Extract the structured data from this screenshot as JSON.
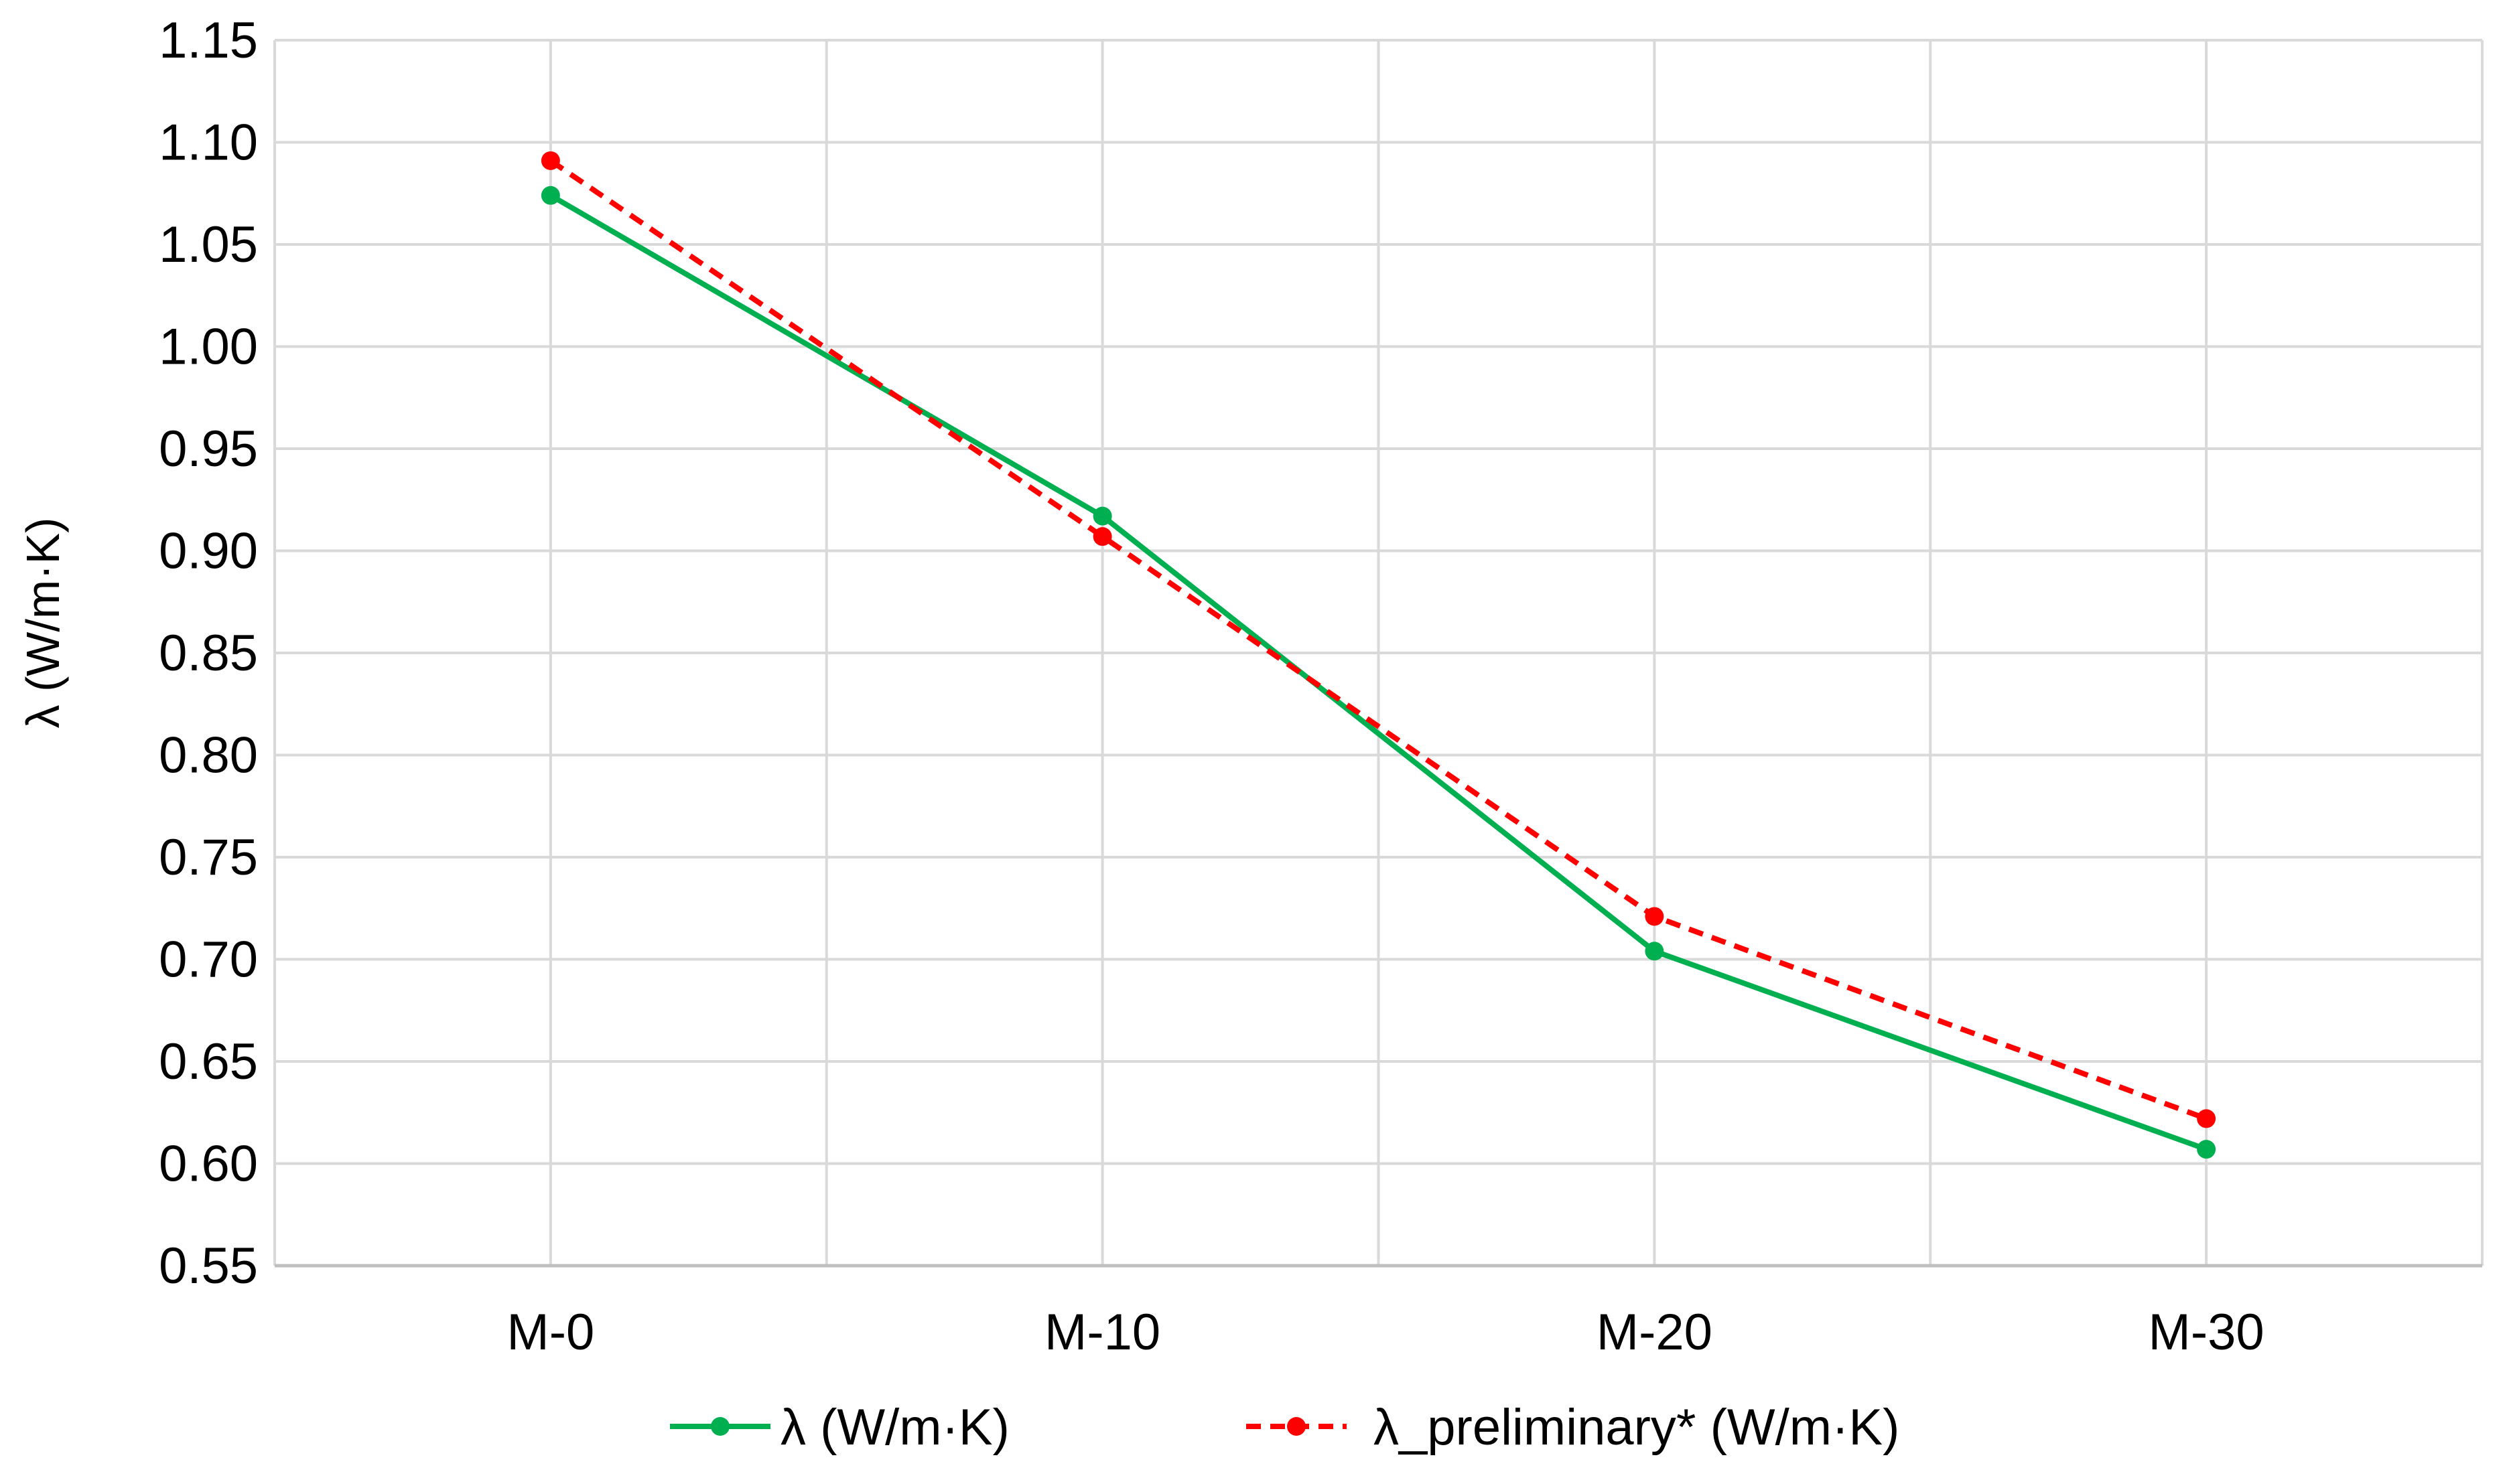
{
  "chart_data": {
    "type": "line",
    "categories": [
      "M-0",
      "M-10",
      "M-20",
      "M-30"
    ],
    "series": [
      {
        "name": "λ (W/m·K)",
        "values": [
          1.074,
          0.917,
          0.704,
          0.607
        ],
        "color": "#00b050",
        "dash": "solid",
        "marker": "circle"
      },
      {
        "name": "λ_preliminary*  (W/m·K)",
        "values": [
          1.091,
          0.907,
          0.721,
          0.622
        ],
        "color": "#ff0000",
        "dash": "dashed",
        "marker": "circle"
      }
    ],
    "title": "",
    "xlabel": "",
    "ylabel": "λ (W/m·K)",
    "ylim": [
      0.55,
      1.15
    ],
    "yticks": [
      "0.55",
      "0.60",
      "0.65",
      "0.70",
      "0.75",
      "0.80",
      "0.85",
      "0.90",
      "0.95",
      "1.00",
      "1.05",
      "1.10",
      "1.15"
    ],
    "grid": true,
    "legend": "bottom-center"
  }
}
